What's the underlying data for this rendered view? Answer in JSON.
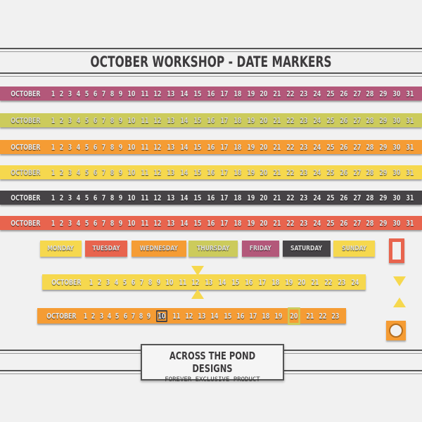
{
  "title": "OCTOBER WORKSHOP - DATE MARKERS",
  "month": "OCTOBER",
  "days": [
    "1",
    "2",
    "3",
    "4",
    "5",
    "6",
    "7",
    "8",
    "9",
    "10",
    "11",
    "12",
    "13",
    "14",
    "15",
    "16",
    "17",
    "18",
    "19",
    "20",
    "21",
    "22",
    "23",
    "24",
    "25",
    "26",
    "27",
    "28",
    "29",
    "30",
    "31"
  ],
  "ribbon_colors": [
    "#b3587a",
    "#cccb5c",
    "#f59c34",
    "#f6d84e",
    "#464346",
    "#e8644e"
  ],
  "weekdays": [
    {
      "label": "MONDAY",
      "color": "#f6d84e"
    },
    {
      "label": "TUESDAY",
      "color": "#e8644e"
    },
    {
      "label": "WEDNESDAY",
      "color": "#f59c34"
    },
    {
      "label": "THURSDAY",
      "color": "#cccb5c"
    },
    {
      "label": "FRIDAY",
      "color": "#b3587a"
    },
    {
      "label": "SATURDAY",
      "color": "#464346"
    },
    {
      "label": "SUNDAY",
      "color": "#f6d84e"
    }
  ],
  "ruler1": {
    "color": "#f6d84e",
    "last_day": 24,
    "marked_day": "12"
  },
  "ruler2": {
    "color": "#f59c34",
    "last_day": 23,
    "circled_day": "10",
    "boxed_day": "20"
  },
  "brand": {
    "name": "ACROSS THE POND DESIGNS",
    "tagline": "FOREVER EXCLUSIVE PRODUCT"
  }
}
